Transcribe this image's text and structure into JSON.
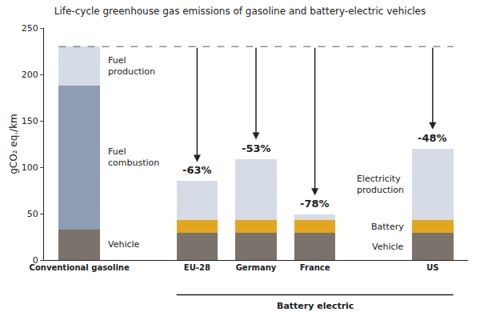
{
  "chart_data": {
    "type": "bar",
    "title": "Life-cycle greenhouse gas emissions of gasoline and battery-electric vehicles",
    "y_label": "gCO₂ eq./km",
    "categories": [
      "Conventional gasoline",
      null,
      "EU-28",
      "Germany",
      "France",
      null,
      "US"
    ],
    "stacked": true,
    "series": [
      {
        "name": "Vehicle",
        "color": "#7b726c",
        "values": [
          33,
          null,
          29,
          29,
          29,
          null,
          29
        ]
      },
      {
        "name": "Battery",
        "color": "#e3a71f",
        "values": [
          null,
          null,
          14,
          14,
          14,
          null,
          14
        ]
      },
      {
        "name": "Fuel combustion",
        "color": "#8e9db3",
        "values": [
          155,
          null,
          null,
          null,
          null,
          null,
          null
        ]
      },
      {
        "name": "Electricity production",
        "color": "#d5dce6",
        "values": [
          null,
          null,
          42,
          66,
          6,
          null,
          77
        ]
      },
      {
        "name": "Fuel production",
        "color": "#d5dce6",
        "values": [
          42,
          null,
          null,
          null,
          null,
          null,
          null
        ]
      }
    ],
    "ylim": [
      0,
      250
    ],
    "yticks": [
      0,
      50,
      100,
      150,
      200,
      250
    ],
    "grid": false,
    "reference_line": {
      "value": 230,
      "line_style": "dash"
    },
    "annotations": {
      "reductions": [
        {
          "category": "EU-28",
          "value": -63,
          "label": "-63%"
        },
        {
          "category": "Germany",
          "value": -53,
          "label": "-53%"
        },
        {
          "category": "France",
          "value": -78,
          "label": "-78%"
        },
        {
          "category": "US",
          "value": -48,
          "label": "-48%"
        }
      ],
      "group_labels": [
        {
          "text": "Battery electric",
          "from": "EU-28",
          "to": "US"
        }
      ]
    }
  }
}
